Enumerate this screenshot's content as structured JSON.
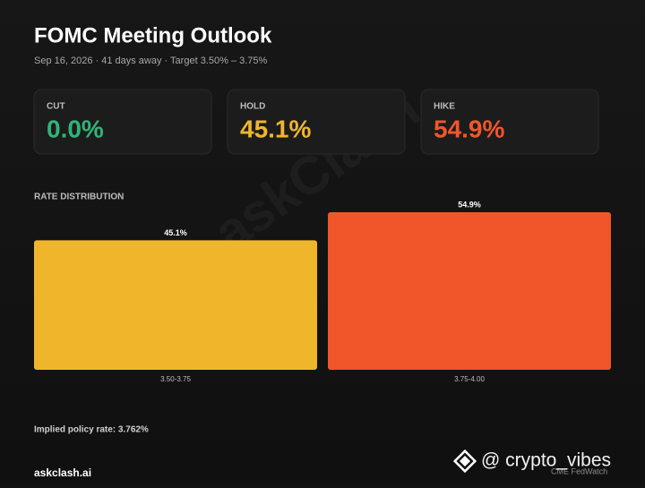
{
  "header": {
    "title": "FOMC Meeting Outlook",
    "subtitle": "Sep 16, 2026 · 41 days away · Target 3.50% – 3.75%"
  },
  "cards": [
    {
      "label": "CUT",
      "value": "0.0%"
    },
    {
      "label": "HOLD",
      "value": "45.1%"
    },
    {
      "label": "HIKE",
      "value": "54.9%"
    }
  ],
  "chart_data": {
    "type": "bar",
    "title": "RATE DISTRIBUTION",
    "categories": [
      "3.50-3.75",
      "3.75-4.00"
    ],
    "values": [
      45.1,
      54.9
    ],
    "value_labels": [
      "45.1%",
      "54.9%"
    ],
    "colors": [
      "#f0b62b",
      "#f0562a"
    ]
  },
  "footer": {
    "note": "Implied policy rate: 3.762%",
    "brand": "askclash.ai",
    "source": "CME FedWatch"
  },
  "watermarks": {
    "diagonal": "askClash",
    "handle": "@ crypto_vibes"
  }
}
